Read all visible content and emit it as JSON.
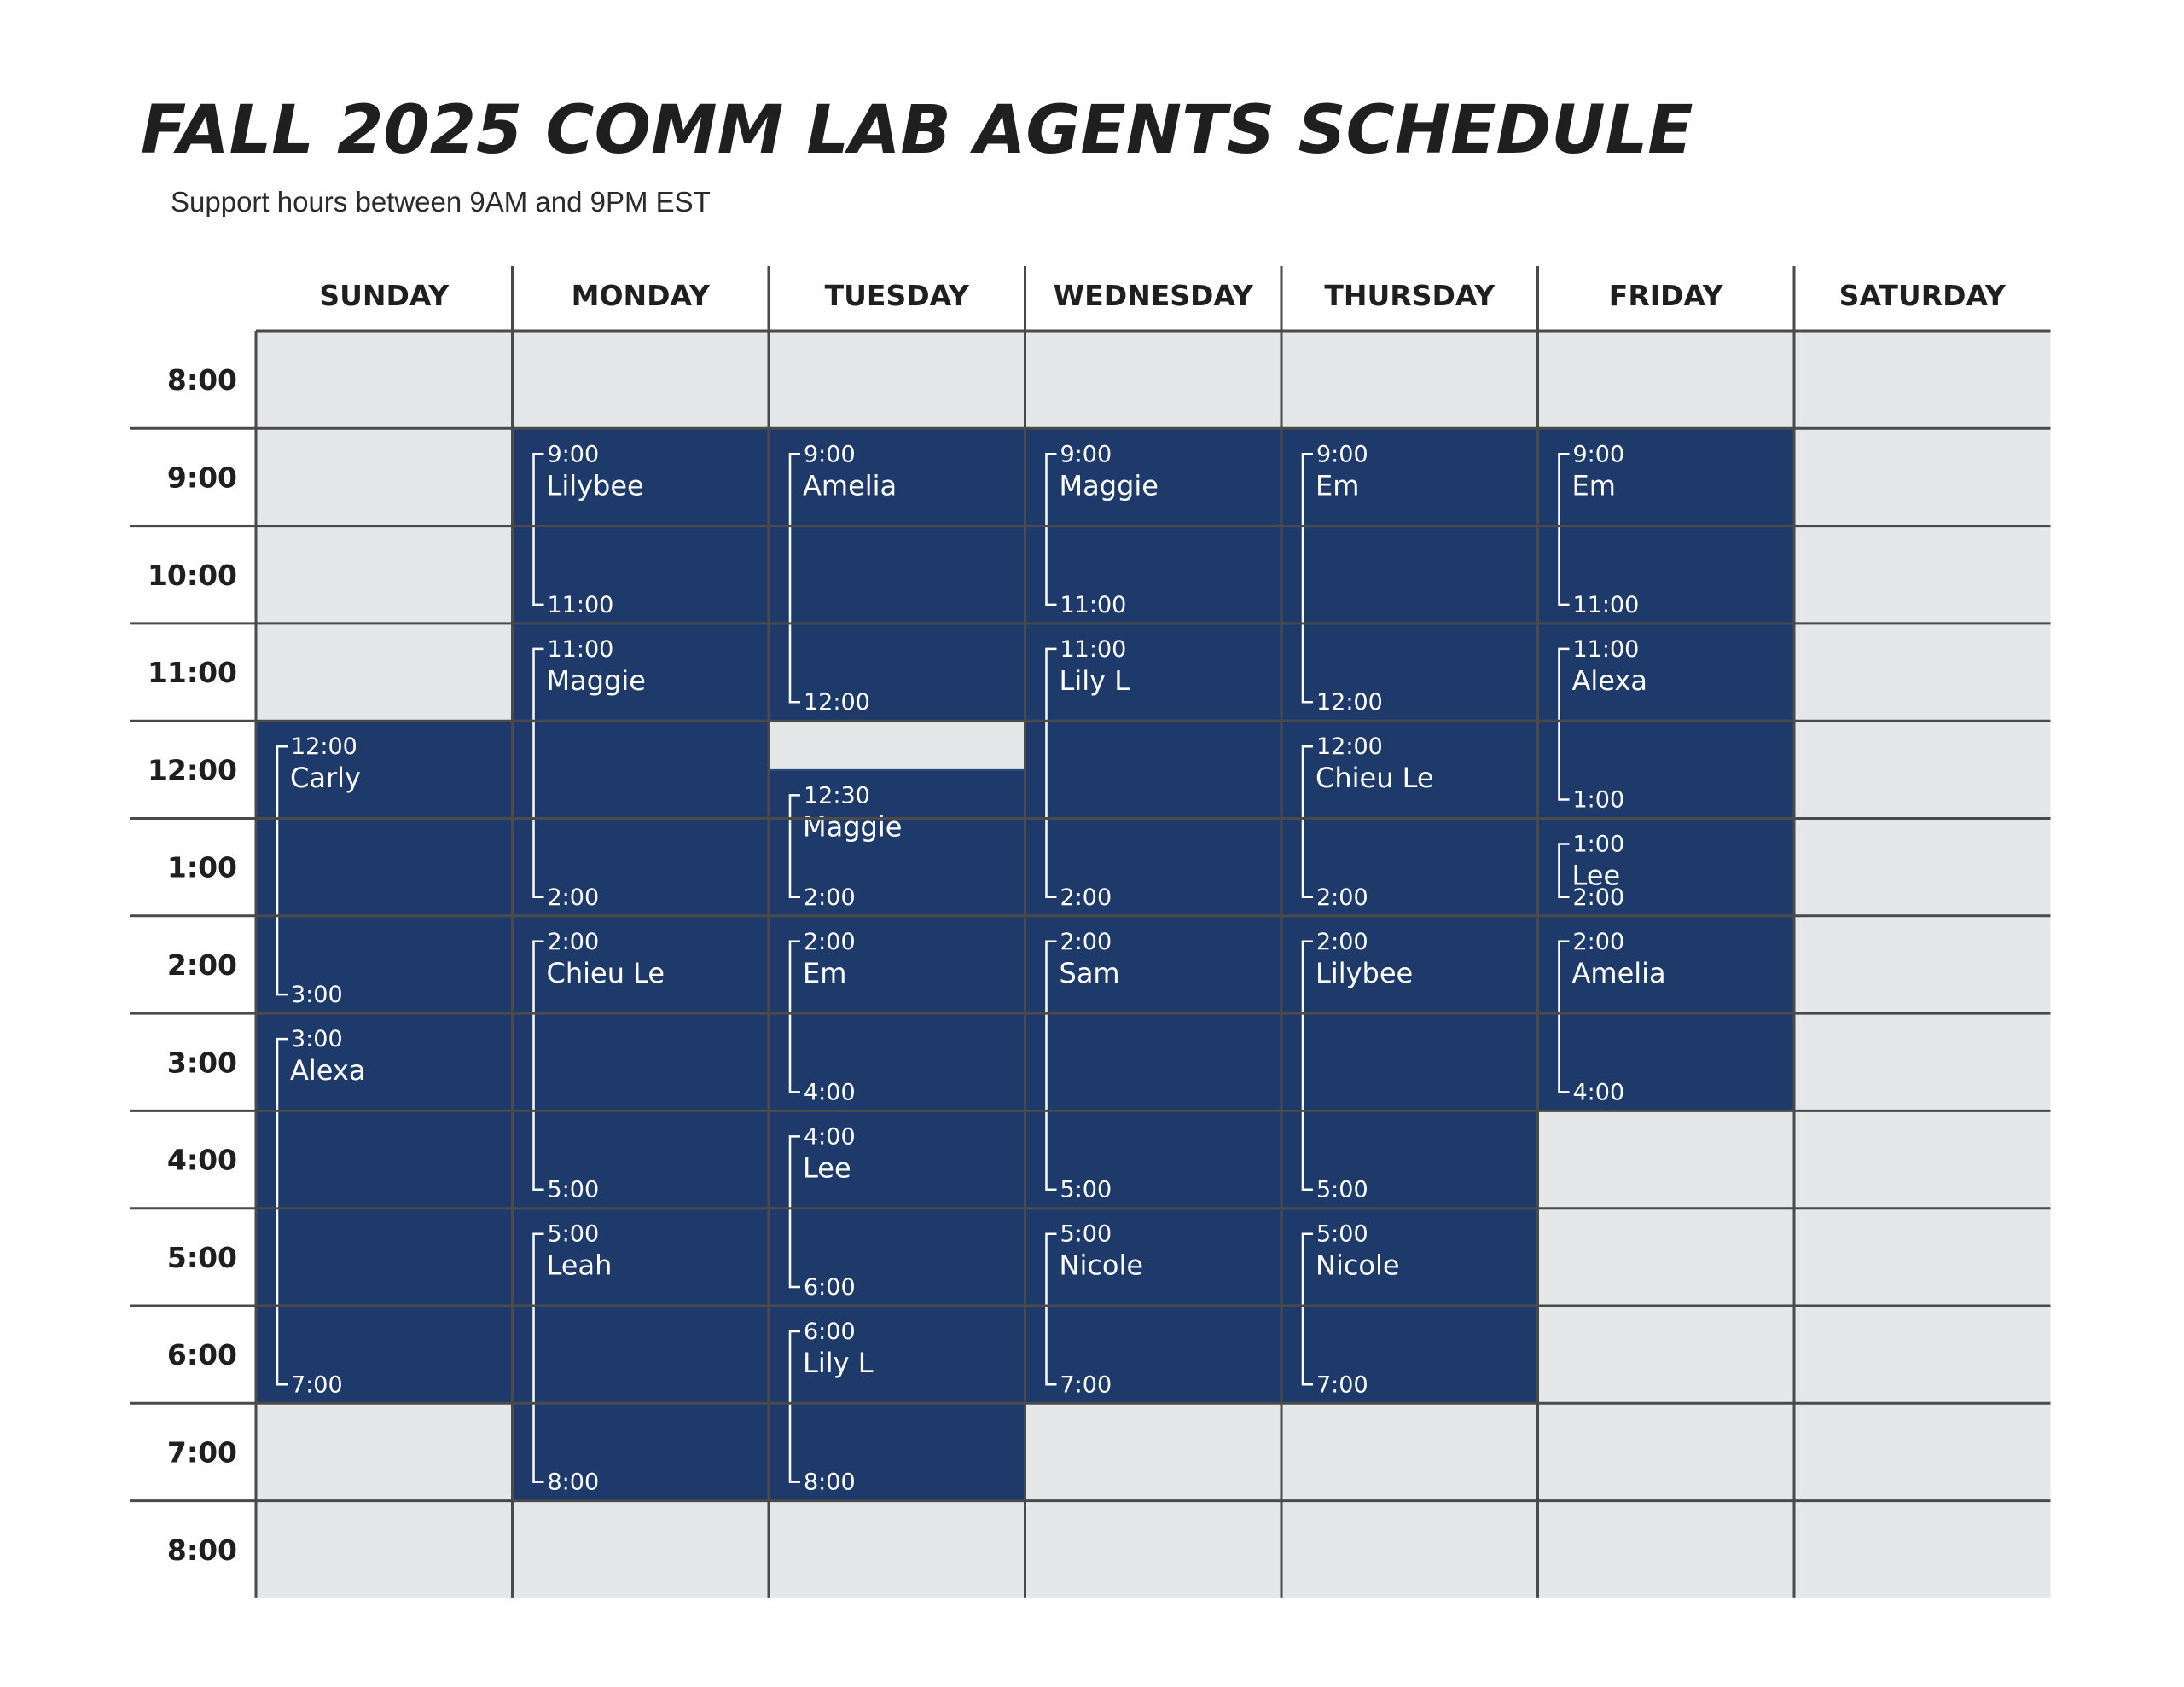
{
  "title": "FALL 2025 COMM LAB AGENTS SCHEDULE",
  "subtitle": "Support hours between 9AM and 9PM EST",
  "colors": {
    "shift_fill": "#1e3a6b",
    "empty_fill": "#e6e7e9",
    "grid_line": "#4a4a4a",
    "gap_fill": "#e6e7e9"
  },
  "days": [
    "SUNDAY",
    "MONDAY",
    "TUESDAY",
    "WEDNESDAY",
    "THURSDAY",
    "FRIDAY",
    "SATURDAY"
  ],
  "time_labels": [
    "8:00",
    "9:00",
    "10:00",
    "11:00",
    "12:00",
    "1:00",
    "2:00",
    "3:00",
    "4:00",
    "5:00",
    "6:00",
    "7:00",
    "8:00"
  ],
  "shifts": [
    {
      "day": 0,
      "start": 12,
      "end": 15,
      "agent": "Carly",
      "start_label": "12:00",
      "end_label": "3:00"
    },
    {
      "day": 0,
      "start": 15,
      "end": 19,
      "agent": "Alexa",
      "start_label": "3:00",
      "end_label": "7:00"
    },
    {
      "day": 1,
      "start": 9,
      "end": 11,
      "agent": "Lilybee",
      "start_label": "9:00",
      "end_label": "11:00"
    },
    {
      "day": 1,
      "start": 11,
      "end": 14,
      "agent": "Maggie",
      "start_label": "11:00",
      "end_label": "2:00"
    },
    {
      "day": 1,
      "start": 14,
      "end": 17,
      "agent": "Chieu Le",
      "start_label": "2:00",
      "end_label": "5:00"
    },
    {
      "day": 1,
      "start": 17,
      "end": 20,
      "agent": "Leah",
      "start_label": "5:00",
      "end_label": "8:00"
    },
    {
      "day": 2,
      "start": 9,
      "end": 12,
      "agent": "Amelia",
      "start_label": "9:00",
      "end_label": "12:00"
    },
    {
      "day": 2,
      "start": 12.5,
      "end": 14,
      "agent": "Maggie",
      "start_label": "12:30",
      "end_label": "2:00"
    },
    {
      "day": 2,
      "start": 14,
      "end": 16,
      "agent": "Em",
      "start_label": "2:00",
      "end_label": "4:00"
    },
    {
      "day": 2,
      "start": 16,
      "end": 18,
      "agent": "Lee",
      "start_label": "4:00",
      "end_label": "6:00"
    },
    {
      "day": 2,
      "start": 18,
      "end": 20,
      "agent": "Lily L",
      "start_label": "6:00",
      "end_label": "8:00"
    },
    {
      "day": 3,
      "start": 9,
      "end": 11,
      "agent": "Maggie",
      "start_label": "9:00",
      "end_label": "11:00"
    },
    {
      "day": 3,
      "start": 11,
      "end": 14,
      "agent": "Lily L",
      "start_label": "11:00",
      "end_label": "2:00"
    },
    {
      "day": 3,
      "start": 14,
      "end": 17,
      "agent": "Sam",
      "start_label": "2:00",
      "end_label": "5:00"
    },
    {
      "day": 3,
      "start": 17,
      "end": 19,
      "agent": "Nicole",
      "start_label": "5:00",
      "end_label": "7:00"
    },
    {
      "day": 4,
      "start": 9,
      "end": 12,
      "agent": "Em",
      "start_label": "9:00",
      "end_label": "12:00"
    },
    {
      "day": 4,
      "start": 12,
      "end": 14,
      "agent": "Chieu Le",
      "start_label": "12:00",
      "end_label": "2:00"
    },
    {
      "day": 4,
      "start": 14,
      "end": 17,
      "agent": "Lilybee",
      "start_label": "2:00",
      "end_label": "5:00"
    },
    {
      "day": 4,
      "start": 17,
      "end": 19,
      "agent": "Nicole",
      "start_label": "5:00",
      "end_label": "7:00"
    },
    {
      "day": 5,
      "start": 9,
      "end": 11,
      "agent": "Em",
      "start_label": "9:00",
      "end_label": "11:00"
    },
    {
      "day": 5,
      "start": 11,
      "end": 13,
      "agent": "Alexa",
      "start_label": "11:00",
      "end_label": "1:00"
    },
    {
      "day": 5,
      "start": 13,
      "end": 14,
      "agent": "Lee",
      "start_label": "1:00",
      "end_label": "2:00"
    },
    {
      "day": 5,
      "start": 14,
      "end": 16,
      "agent": "Amelia",
      "start_label": "2:00",
      "end_label": "4:00"
    }
  ]
}
